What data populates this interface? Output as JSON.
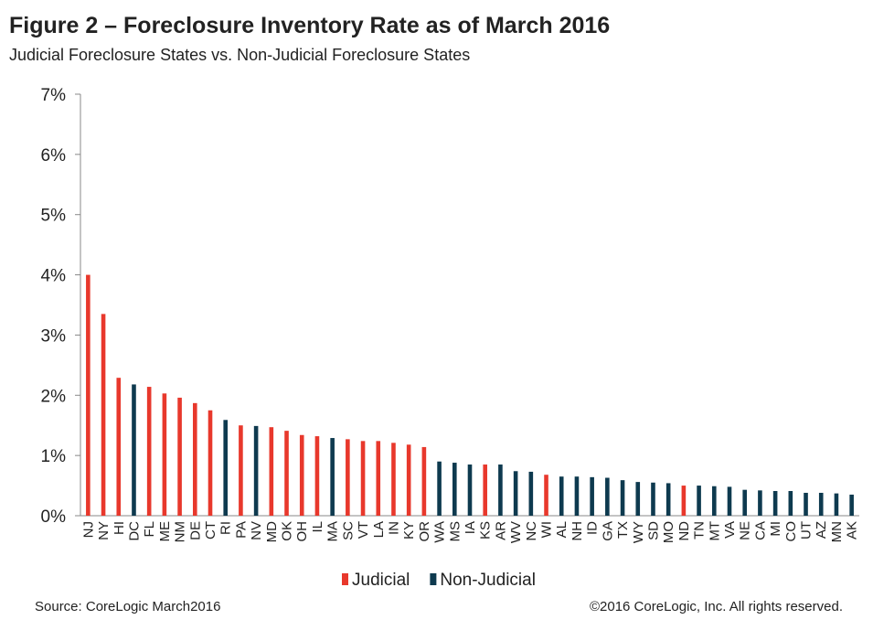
{
  "chart_data": {
    "type": "bar",
    "title": "Figure 2 – Foreclosure Inventory Rate as of March 2016",
    "subtitle": "Judicial Foreclosure States vs. Non-Judicial Foreclosure States",
    "source": "Source: CoreLogic  March2016",
    "copyright": "©2016 CoreLogic, Inc. All rights reserved.",
    "categories": [
      "NJ",
      "NY",
      "HI",
      "DC",
      "FL",
      "ME",
      "NM",
      "DE",
      "CT",
      "RI",
      "PA",
      "NV",
      "MD",
      "OK",
      "OH",
      "IL",
      "MA",
      "SC",
      "VT",
      "LA",
      "IN",
      "KY",
      "OR",
      "WA",
      "MS",
      "IA",
      "KS",
      "AR",
      "WV",
      "NC",
      "WI",
      "AL",
      "NH",
      "ID",
      "GA",
      "TX",
      "WY",
      "SD",
      "MO",
      "ND",
      "TN",
      "MT",
      "VA",
      "NE",
      "CA",
      "MI",
      "CO",
      "UT",
      "AZ",
      "MN",
      "AK"
    ],
    "series": [
      {
        "name": "Judicial",
        "color": "#e8382c",
        "values": [
          4.0,
          3.35,
          2.29,
          null,
          2.14,
          2.03,
          1.96,
          1.87,
          1.75,
          null,
          1.5,
          null,
          1.47,
          1.41,
          1.34,
          1.32,
          null,
          1.27,
          1.24,
          1.24,
          1.21,
          1.18,
          1.14,
          null,
          null,
          null,
          0.85,
          null,
          null,
          null,
          0.68,
          null,
          null,
          null,
          null,
          null,
          null,
          null,
          null,
          0.5,
          null,
          null,
          null,
          null,
          null,
          null,
          null,
          null,
          null,
          null,
          null
        ]
      },
      {
        "name": "Non-Judicial",
        "color": "#0e3a4f",
        "values": [
          null,
          null,
          null,
          2.18,
          null,
          null,
          null,
          null,
          null,
          1.59,
          null,
          1.49,
          null,
          null,
          null,
          null,
          1.29,
          null,
          null,
          null,
          null,
          null,
          null,
          0.9,
          0.88,
          0.85,
          null,
          0.85,
          0.74,
          0.73,
          null,
          0.65,
          0.65,
          0.64,
          0.63,
          0.59,
          0.56,
          0.55,
          0.54,
          null,
          0.5,
          0.49,
          0.48,
          0.43,
          0.42,
          0.41,
          0.41,
          0.38,
          0.38,
          0.37,
          0.35
        ]
      }
    ],
    "ylim": [
      0,
      7
    ],
    "yticks": [
      {
        "value": 0,
        "label": "0%"
      },
      {
        "value": 1,
        "label": "1%"
      },
      {
        "value": 2,
        "label": "2%"
      },
      {
        "value": 3,
        "label": "3%"
      },
      {
        "value": 4,
        "label": "4%"
      },
      {
        "value": 5,
        "label": "5%"
      },
      {
        "value": 6,
        "label": "6%"
      },
      {
        "value": 7,
        "label": "7%"
      }
    ],
    "legend": "bottom"
  }
}
